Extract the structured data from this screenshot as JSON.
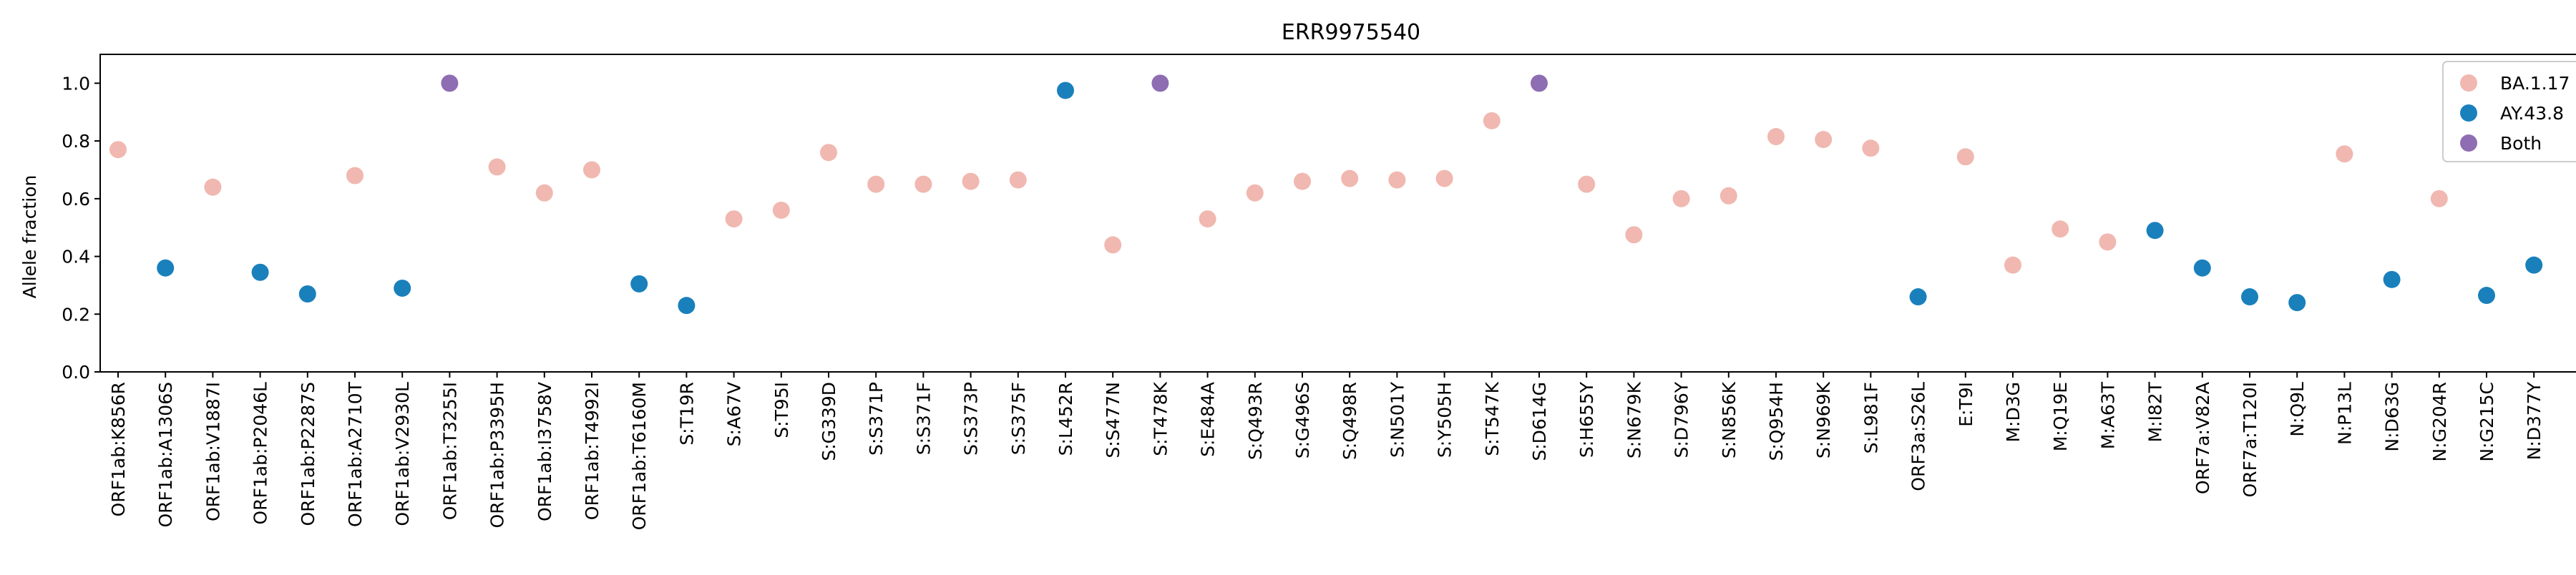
{
  "chart_data": {
    "type": "scatter",
    "title": "ERR9975540",
    "xlabel": "",
    "ylabel": "Allele fraction",
    "ylim": [
      0.0,
      1.1
    ],
    "yticks": [
      "0.0",
      "0.2",
      "0.4",
      "0.6",
      "0.8",
      "1.0"
    ],
    "grid": false,
    "legend_position": "top-right",
    "categories": [
      "ORF1ab:K856R",
      "ORF1ab:A1306S",
      "ORF1ab:V1887I",
      "ORF1ab:P2046L",
      "ORF1ab:P2287S",
      "ORF1ab:A2710T",
      "ORF1ab:V2930L",
      "ORF1ab:T3255I",
      "ORF1ab:P3395H",
      "ORF1ab:I3758V",
      "ORF1ab:T4992I",
      "ORF1ab:T6160M",
      "S:T19R",
      "S:A67V",
      "S:T95I",
      "S:G339D",
      "S:S371P",
      "S:S371F",
      "S:S373P",
      "S:S375F",
      "S:L452R",
      "S:S477N",
      "S:T478K",
      "S:E484A",
      "S:Q493R",
      "S:G496S",
      "S:Q498R",
      "S:N501Y",
      "S:Y505H",
      "S:T547K",
      "S:D614G",
      "S:H655Y",
      "S:N679K",
      "S:D796Y",
      "S:N856K",
      "S:Q954H",
      "S:N969K",
      "S:L981F",
      "ORF3a:S26L",
      "E:T9I",
      "M:D3G",
      "M:Q19E",
      "M:A63T",
      "M:I82T",
      "ORF7a:V82A",
      "ORF7a:T120I",
      "N:Q9L",
      "N:P13L",
      "N:D63G",
      "N:G204R",
      "N:G215C",
      "N:D377Y"
    ],
    "series": [
      {
        "name": "BA.1.17",
        "color": "#f0b8b0",
        "points": [
          {
            "x": "ORF1ab:K856R",
            "y": 0.77
          },
          {
            "x": "ORF1ab:V1887I",
            "y": 0.64
          },
          {
            "x": "ORF1ab:A2710T",
            "y": 0.68
          },
          {
            "x": "ORF1ab:P3395H",
            "y": 0.71
          },
          {
            "x": "ORF1ab:I3758V",
            "y": 0.62
          },
          {
            "x": "ORF1ab:T4992I",
            "y": 0.7
          },
          {
            "x": "S:A67V",
            "y": 0.53
          },
          {
            "x": "S:T95I",
            "y": 0.56
          },
          {
            "x": "S:G339D",
            "y": 0.76
          },
          {
            "x": "S:S371P",
            "y": 0.65
          },
          {
            "x": "S:S371F",
            "y": 0.65
          },
          {
            "x": "S:S373P",
            "y": 0.66
          },
          {
            "x": "S:S375F",
            "y": 0.665
          },
          {
            "x": "S:S477N",
            "y": 0.44
          },
          {
            "x": "S:E484A",
            "y": 0.53
          },
          {
            "x": "S:Q493R",
            "y": 0.62
          },
          {
            "x": "S:G496S",
            "y": 0.66
          },
          {
            "x": "S:Q498R",
            "y": 0.67
          },
          {
            "x": "S:N501Y",
            "y": 0.665
          },
          {
            "x": "S:Y505H",
            "y": 0.67
          },
          {
            "x": "S:T547K",
            "y": 0.87
          },
          {
            "x": "S:H655Y",
            "y": 0.65
          },
          {
            "x": "S:N679K",
            "y": 0.475
          },
          {
            "x": "S:D796Y",
            "y": 0.6
          },
          {
            "x": "S:N856K",
            "y": 0.61
          },
          {
            "x": "S:Q954H",
            "y": 0.815
          },
          {
            "x": "S:N969K",
            "y": 0.805
          },
          {
            "x": "S:L981F",
            "y": 0.775
          },
          {
            "x": "E:T9I",
            "y": 0.745
          },
          {
            "x": "M:D3G",
            "y": 0.37
          },
          {
            "x": "M:Q19E",
            "y": 0.495
          },
          {
            "x": "M:A63T",
            "y": 0.45
          },
          {
            "x": "N:P13L",
            "y": 0.755
          },
          {
            "x": "N:G204R",
            "y": 0.6
          }
        ]
      },
      {
        "name": "AY.43.8",
        "color": "#1a80bb",
        "points": [
          {
            "x": "ORF1ab:A1306S",
            "y": 0.36
          },
          {
            "x": "ORF1ab:P2046L",
            "y": 0.345
          },
          {
            "x": "ORF1ab:P2287S",
            "y": 0.27
          },
          {
            "x": "ORF1ab:V2930L",
            "y": 0.29
          },
          {
            "x": "ORF1ab:T6160M",
            "y": 0.305
          },
          {
            "x": "S:T19R",
            "y": 0.23
          },
          {
            "x": "S:L452R",
            "y": 0.975
          },
          {
            "x": "ORF3a:S26L",
            "y": 0.26
          },
          {
            "x": "M:I82T",
            "y": 0.49
          },
          {
            "x": "ORF7a:V82A",
            "y": 0.36
          },
          {
            "x": "ORF7a:T120I",
            "y": 0.26
          },
          {
            "x": "N:Q9L",
            "y": 0.24
          },
          {
            "x": "N:D63G",
            "y": 0.32
          },
          {
            "x": "N:G215C",
            "y": 0.265
          },
          {
            "x": "N:D377Y",
            "y": 0.37
          }
        ]
      },
      {
        "name": "Both",
        "color": "#8e6db3",
        "points": [
          {
            "x": "ORF1ab:T3255I",
            "y": 1.0
          },
          {
            "x": "S:T478K",
            "y": 1.0
          },
          {
            "x": "S:D614G",
            "y": 1.0
          }
        ]
      }
    ]
  }
}
